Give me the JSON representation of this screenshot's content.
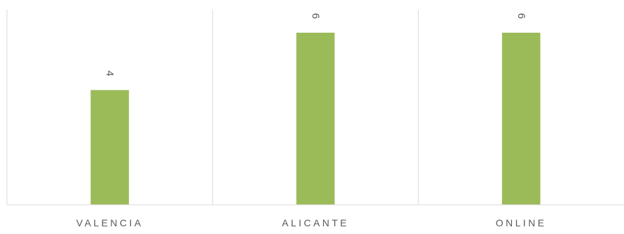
{
  "chart_data": {
    "type": "bar",
    "categories": [
      "VALENCIA",
      "ALICANTE",
      "ONLINE"
    ],
    "values": [
      4,
      6,
      6
    ],
    "data_labels": [
      "4",
      "6",
      "6"
    ],
    "ylim": [
      0,
      6.8
    ],
    "grid": false,
    "legend": "none",
    "colors": {
      "bar": "#9BBB59",
      "separator": "#D9D9D9",
      "axis": "#D9D9D9",
      "text": "#595959"
    }
  }
}
